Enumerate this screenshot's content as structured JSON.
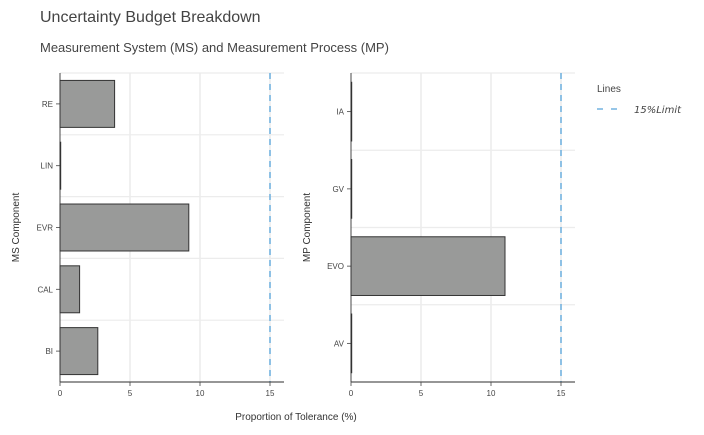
{
  "header": {
    "title": "Uncertainty Budget Breakdown",
    "subtitle": "Measurement System (MS) and Measurement Process (MP)"
  },
  "chart_data": [
    {
      "type": "bar",
      "orientation": "horizontal",
      "categories": [
        "RE",
        "LIN",
        "EVR",
        "CAL",
        "BI"
      ],
      "values": [
        3.9,
        0.05,
        9.2,
        1.4,
        2.7
      ],
      "ylabel": "MS Component",
      "xlabel": "Proportion of Tolerance (%)",
      "xlim": [
        0,
        16
      ],
      "xticks": [
        0,
        5,
        10,
        15
      ],
      "xtick_labels": [
        "0",
        "5",
        "10",
        "15"
      ],
      "reference_line": {
        "x": 15,
        "label": "15%Limit",
        "color": "#74b3e0"
      },
      "bar_color": "#999a99",
      "grid": true
    },
    {
      "type": "bar",
      "orientation": "horizontal",
      "categories": [
        "IA",
        "GV",
        "EVO",
        "AV"
      ],
      "values": [
        0.05,
        0.05,
        11.0,
        0.05
      ],
      "ylabel": "MP Component",
      "xlabel": "Proportion of Tolerance (%)",
      "xlim": [
        0,
        16
      ],
      "xticks": [
        0,
        5,
        10,
        15
      ],
      "xtick_labels": [
        "0",
        "5",
        "10",
        "15"
      ],
      "reference_line": {
        "x": 15,
        "label": "15%Limit",
        "color": "#74b3e0"
      },
      "bar_color": "#999a99",
      "grid": true
    }
  ],
  "legend": {
    "title": "Lines",
    "items": [
      {
        "label": "15%Limit",
        "style": "dashed",
        "color": "#74b3e0"
      }
    ],
    "placement": "right"
  },
  "shared_xlabel": "Proportion of Tolerance (%)"
}
